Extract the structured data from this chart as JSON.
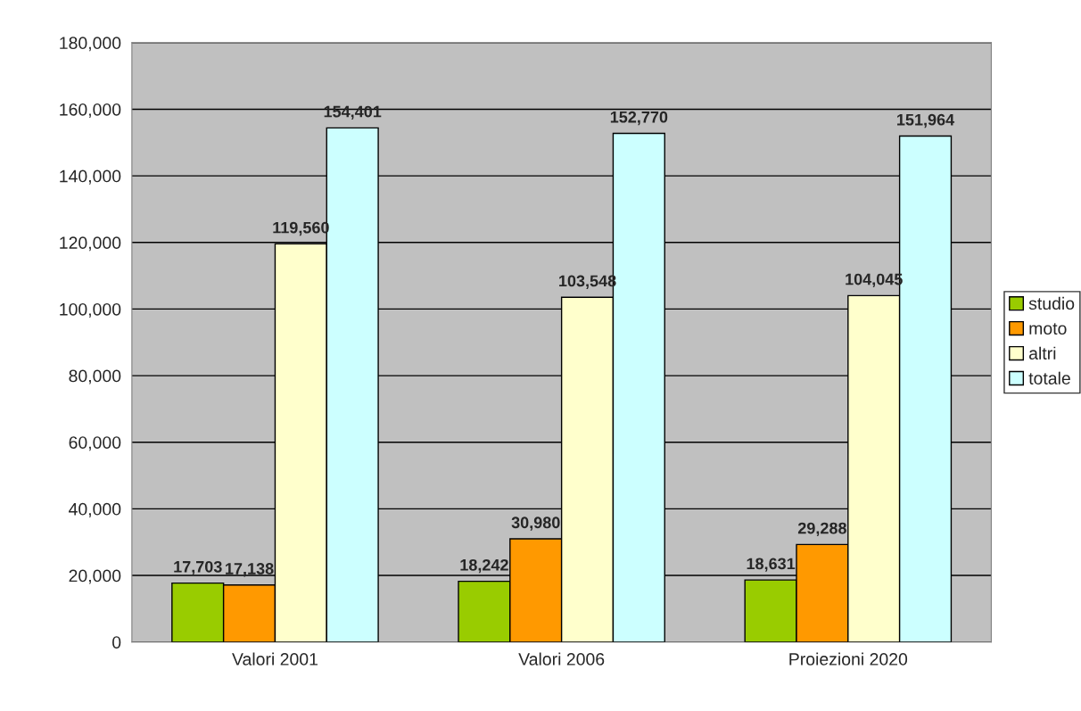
{
  "chart_data": {
    "type": "bar",
    "categories": [
      "Valori 2001",
      "Valori 2006",
      "Proiezioni 2020"
    ],
    "series": [
      {
        "name": "studio",
        "color": "#99cc00",
        "values": [
          17703,
          18242,
          18631
        ],
        "value_labels": [
          "17,703",
          "18,242",
          "18,631"
        ]
      },
      {
        "name": "moto",
        "color": "#ff9900",
        "values": [
          17138,
          30980,
          29288
        ],
        "value_labels": [
          "17,138",
          "30,980",
          "29,288"
        ]
      },
      {
        "name": "altri",
        "color": "#ffffcc",
        "values": [
          119560,
          103548,
          104045
        ],
        "value_labels": [
          "119,560",
          "103,548",
          "104,045"
        ]
      },
      {
        "name": "totale",
        "color": "#ccffff",
        "values": [
          154401,
          152770,
          151964
        ],
        "value_labels": [
          "154,401",
          "152,770",
          "151,964"
        ]
      }
    ],
    "ylim": [
      0,
      180000
    ],
    "yticks": [
      {
        "value": 0,
        "label": "0"
      },
      {
        "value": 20000,
        "label": "20,000"
      },
      {
        "value": 40000,
        "label": "40,000"
      },
      {
        "value": 60000,
        "label": "60,000"
      },
      {
        "value": 80000,
        "label": "80,000"
      },
      {
        "value": 100000,
        "label": "100,000"
      },
      {
        "value": 120000,
        "label": "120,000"
      },
      {
        "value": 140000,
        "label": "140,000"
      },
      {
        "value": 160000,
        "label": "160,000"
      },
      {
        "value": 180000,
        "label": "180,000"
      }
    ],
    "grid": "y",
    "legend": "right"
  }
}
